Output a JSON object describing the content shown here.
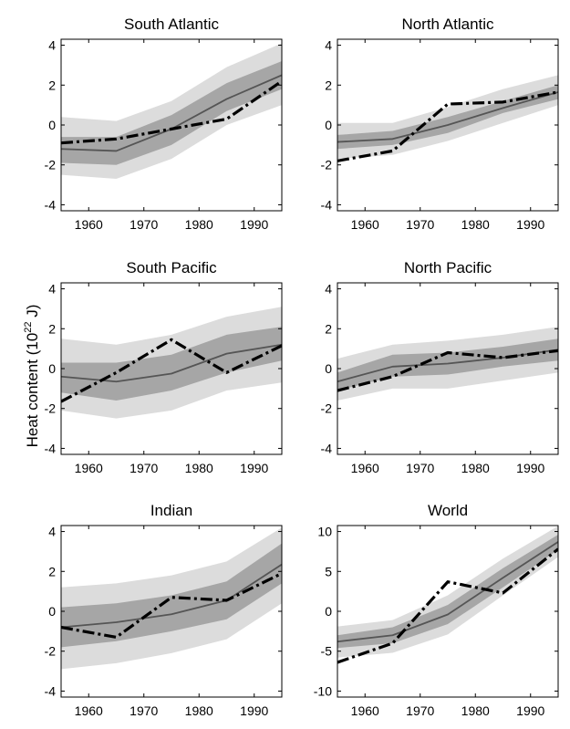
{
  "figure": {
    "ylabel_prefix": "Heat content (10",
    "ylabel_exp": "22",
    "ylabel_suffix": " J)"
  },
  "colors": {
    "outer_band": "#dcdcdc",
    "inner_band": "#a6a6a6",
    "model_mean": "#555555",
    "observed": "#000000"
  },
  "chart_data": [
    {
      "type": "area",
      "title": "South Atlantic",
      "xlim": [
        1955,
        1995
      ],
      "ylim": [
        -4.3,
        4.3
      ],
      "xticks": [
        1960,
        1970,
        1980,
        1990
      ],
      "xtick_labels": [
        "1960",
        "1970",
        "1980",
        "1990"
      ],
      "yticks": [
        -4,
        -2,
        0,
        2,
        4
      ],
      "ytick_labels": [
        "-4",
        "-2",
        "0",
        "2",
        "4"
      ],
      "x": [
        1955,
        1965,
        1975,
        1985,
        1995
      ],
      "series": [
        {
          "kind": "outer_band",
          "lower": [
            -2.5,
            -2.7,
            -1.7,
            0.0,
            1.0
          ],
          "upper": [
            0.4,
            0.2,
            1.2,
            2.9,
            4.1
          ]
        },
        {
          "kind": "inner_band",
          "lower": [
            -1.9,
            -2.0,
            -1.0,
            0.7,
            1.8
          ],
          "upper": [
            -0.6,
            -0.6,
            0.5,
            2.1,
            3.2
          ]
        },
        {
          "kind": "model_mean",
          "values": [
            -1.2,
            -1.3,
            -0.2,
            1.3,
            2.5
          ]
        },
        {
          "kind": "observed",
          "values": [
            -0.9,
            -0.7,
            -0.2,
            0.3,
            2.2
          ]
        }
      ]
    },
    {
      "type": "area",
      "title": "North Atlantic",
      "xlim": [
        1955,
        1995
      ],
      "ylim": [
        -4.3,
        4.3
      ],
      "xticks": [
        1960,
        1970,
        1980,
        1990
      ],
      "xtick_labels": [
        "1960",
        "1970",
        "1980",
        "1990"
      ],
      "yticks": [
        -4,
        -2,
        0,
        2,
        4
      ],
      "ytick_labels": [
        "-4",
        "-2",
        "0",
        "2",
        "4"
      ],
      "x": [
        1955,
        1965,
        1975,
        1985,
        1995
      ],
      "series": [
        {
          "kind": "outer_band",
          "lower": [
            -1.7,
            -1.5,
            -0.8,
            0.1,
            1.0
          ],
          "upper": [
            0.1,
            0.1,
            0.9,
            1.8,
            2.5
          ]
        },
        {
          "kind": "inner_band",
          "lower": [
            -1.2,
            -1.0,
            -0.4,
            0.6,
            1.3
          ],
          "upper": [
            -0.5,
            -0.3,
            0.4,
            1.2,
            2.0
          ]
        },
        {
          "kind": "model_mean",
          "values": [
            -0.85,
            -0.7,
            0.0,
            0.85,
            1.65
          ]
        },
        {
          "kind": "observed",
          "values": [
            -1.8,
            -1.3,
            1.05,
            1.15,
            1.65
          ]
        }
      ]
    },
    {
      "type": "area",
      "title": "South Pacific",
      "xlim": [
        1955,
        1995
      ],
      "ylim": [
        -4.3,
        4.3
      ],
      "xticks": [
        1960,
        1970,
        1980,
        1990
      ],
      "xtick_labels": [
        "1960",
        "1970",
        "1980",
        "1990"
      ],
      "yticks": [
        -4,
        -2,
        0,
        2,
        4
      ],
      "ytick_labels": [
        "-4",
        "-2",
        "0",
        "2",
        "4"
      ],
      "x": [
        1955,
        1965,
        1975,
        1985,
        1995
      ],
      "series": [
        {
          "kind": "outer_band",
          "lower": [
            -2.1,
            -2.5,
            -2.1,
            -1.1,
            -0.7
          ],
          "upper": [
            1.5,
            1.2,
            1.7,
            2.6,
            3.1
          ]
        },
        {
          "kind": "inner_band",
          "lower": [
            -1.2,
            -1.6,
            -1.1,
            -0.2,
            0.4
          ],
          "upper": [
            0.3,
            0.3,
            0.7,
            1.7,
            2.1
          ]
        },
        {
          "kind": "model_mean",
          "values": [
            -0.4,
            -0.65,
            -0.25,
            0.75,
            1.2
          ]
        },
        {
          "kind": "observed",
          "values": [
            -1.65,
            -0.2,
            1.45,
            -0.2,
            1.15
          ]
        }
      ]
    },
    {
      "type": "area",
      "title": "North Pacific",
      "xlim": [
        1955,
        1995
      ],
      "ylim": [
        -4.3,
        4.3
      ],
      "xticks": [
        1960,
        1970,
        1980,
        1990
      ],
      "xtick_labels": [
        "1960",
        "1970",
        "1980",
        "1990"
      ],
      "yticks": [
        -4,
        -2,
        0,
        2,
        4
      ],
      "ytick_labels": [
        "-4",
        "-2",
        "0",
        "2",
        "4"
      ],
      "x": [
        1955,
        1965,
        1975,
        1985,
        1995
      ],
      "series": [
        {
          "kind": "outer_band",
          "lower": [
            -1.6,
            -1.0,
            -1.0,
            -0.6,
            -0.2
          ],
          "upper": [
            0.5,
            1.2,
            1.4,
            1.7,
            2.1
          ]
        },
        {
          "kind": "inner_band",
          "lower": [
            -1.1,
            -0.4,
            -0.3,
            0.1,
            0.4
          ],
          "upper": [
            -0.2,
            0.7,
            0.8,
            1.1,
            1.5
          ]
        },
        {
          "kind": "model_mean",
          "values": [
            -0.65,
            0.1,
            0.25,
            0.55,
            0.95
          ]
        },
        {
          "kind": "observed",
          "values": [
            -1.1,
            -0.4,
            0.8,
            0.55,
            0.9
          ]
        }
      ]
    },
    {
      "type": "area",
      "title": "Indian",
      "xlim": [
        1955,
        1995
      ],
      "ylim": [
        -4.3,
        4.3
      ],
      "xticks": [
        1960,
        1970,
        1980,
        1990
      ],
      "xtick_labels": [
        "1960",
        "1970",
        "1980",
        "1990"
      ],
      "yticks": [
        -4,
        -2,
        0,
        2,
        4
      ],
      "ytick_labels": [
        "-4",
        "-2",
        "0",
        "2",
        "4"
      ],
      "x": [
        1955,
        1965,
        1975,
        1985,
        1995
      ],
      "series": [
        {
          "kind": "outer_band",
          "lower": [
            -2.9,
            -2.6,
            -2.1,
            -1.4,
            0.4
          ],
          "upper": [
            1.2,
            1.4,
            1.8,
            2.5,
            4.2
          ]
        },
        {
          "kind": "inner_band",
          "lower": [
            -1.8,
            -1.5,
            -1.0,
            -0.4,
            1.4
          ],
          "upper": [
            0.2,
            0.4,
            0.8,
            1.5,
            3.4
          ]
        },
        {
          "kind": "model_mean",
          "values": [
            -0.8,
            -0.55,
            -0.15,
            0.55,
            2.35
          ]
        },
        {
          "kind": "observed",
          "values": [
            -0.8,
            -1.3,
            0.7,
            0.55,
            1.9
          ]
        }
      ]
    },
    {
      "type": "area",
      "title": "World",
      "xlim": [
        1955,
        1995
      ],
      "ylim": [
        -10.75,
        10.75
      ],
      "xticks": [
        1960,
        1970,
        1980,
        1990
      ],
      "xtick_labels": [
        "1960",
        "1970",
        "1980",
        "1990"
      ],
      "yticks": [
        -10,
        -5,
        0,
        5,
        10
      ],
      "ytick_labels": [
        "-10",
        "-5",
        "0",
        "5",
        "10"
      ],
      "x": [
        1955,
        1965,
        1975,
        1985,
        1995
      ],
      "series": [
        {
          "kind": "outer_band",
          "lower": [
            -5.8,
            -5.2,
            -2.9,
            2.0,
            6.8
          ],
          "upper": [
            -1.9,
            -1.1,
            2.0,
            6.6,
            10.7
          ]
        },
        {
          "kind": "inner_band",
          "lower": [
            -4.6,
            -4.0,
            -1.6,
            3.0,
            7.7
          ],
          "upper": [
            -3.0,
            -2.0,
            0.8,
            5.4,
            9.6
          ]
        },
        {
          "kind": "model_mean",
          "values": [
            -3.8,
            -3.0,
            -0.4,
            4.2,
            8.7
          ]
        },
        {
          "kind": "observed",
          "values": [
            -6.4,
            -4.0,
            3.7,
            2.3,
            7.8
          ]
        }
      ]
    }
  ]
}
